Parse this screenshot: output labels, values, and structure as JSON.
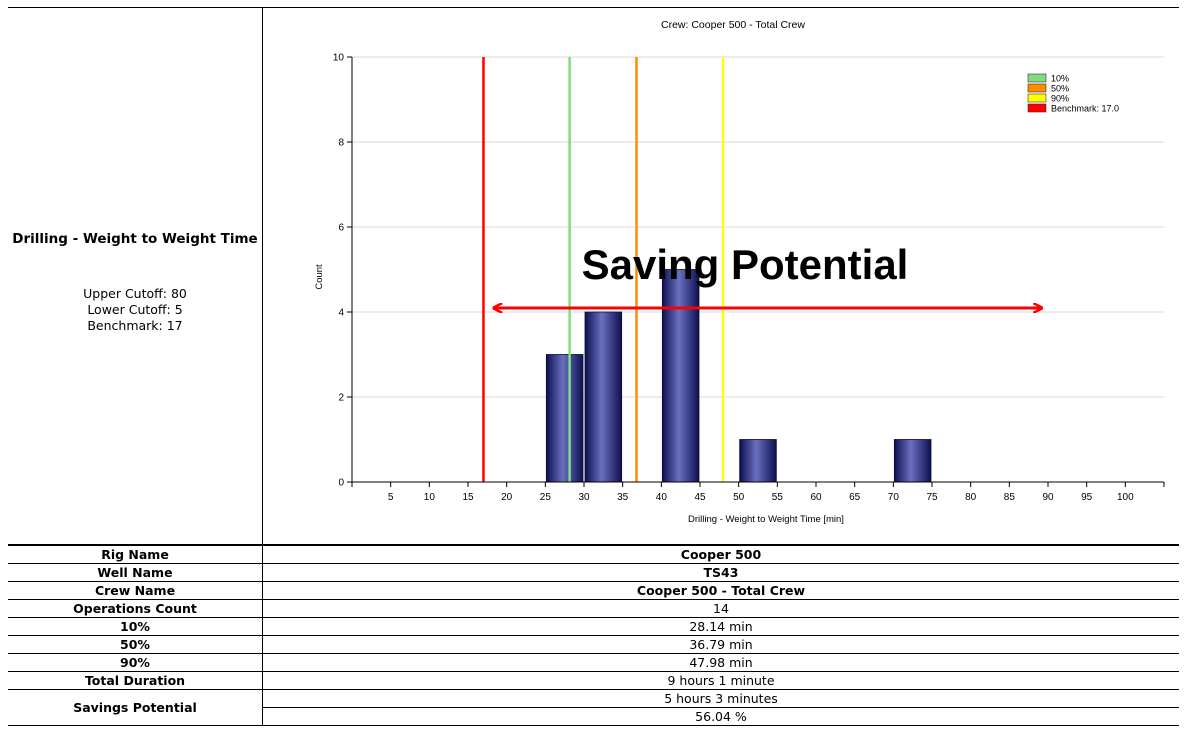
{
  "panel": {
    "metric_title": "Drilling - Weight to Weight Time",
    "upper_cutoff": "Upper Cutoff: 80",
    "lower_cutoff": "Lower Cutoff: 5",
    "benchmark": "Benchmark: 17"
  },
  "overlay": {
    "saving_potential_label": "Saving Potential",
    "arrow_from_x": 17,
    "arrow_to_x": 90,
    "arrow_color": "#ff0000"
  },
  "chart_data": {
    "type": "bar",
    "title": "Crew: Cooper 500 - Total Crew",
    "xlabel": "Drilling - Weight to Weight Time [min]",
    "ylabel": "Count",
    "xlim": [
      0,
      105
    ],
    "ylim": [
      0,
      10
    ],
    "x_ticks": [
      5,
      10,
      15,
      20,
      25,
      30,
      35,
      40,
      45,
      50,
      55,
      60,
      65,
      70,
      75,
      80,
      85,
      90,
      95,
      100
    ],
    "y_ticks": [
      0,
      2,
      4,
      6,
      8,
      10
    ],
    "grid": "horizontal",
    "bar_color": "#1e2270",
    "bars": [
      {
        "x_start": 25,
        "x_end": 30,
        "count": 3
      },
      {
        "x_start": 30,
        "x_end": 35,
        "count": 4
      },
      {
        "x_start": 40,
        "x_end": 45,
        "count": 5
      },
      {
        "x_start": 50,
        "x_end": 55,
        "count": 1
      },
      {
        "x_start": 70,
        "x_end": 75,
        "count": 1
      }
    ],
    "reference_lines": [
      {
        "name": "10%",
        "x": 28.14,
        "color": "#7fdd7f"
      },
      {
        "name": "50%",
        "x": 36.79,
        "color": "#ff8c00"
      },
      {
        "name": "90%",
        "x": 47.98,
        "color": "#ffff00"
      },
      {
        "name": "Benchmark: 17.0",
        "x": 17.0,
        "color": "#ff0000"
      }
    ],
    "legend_position": "top-right"
  },
  "stats": {
    "rows": [
      {
        "label": "Rig Name",
        "value": "Cooper 500",
        "bold": true
      },
      {
        "label": "Well Name",
        "value": "TS43",
        "bold": true
      },
      {
        "label": "Crew Name",
        "value": "Cooper 500 - Total Crew",
        "bold": true
      },
      {
        "label": "Operations Count",
        "value": "14",
        "bold": false
      },
      {
        "label": "10%",
        "value": "28.14 min",
        "bold": false
      },
      {
        "label": "50%",
        "value": "36.79 min",
        "bold": false
      },
      {
        "label": "90%",
        "value": "47.98 min",
        "bold": false
      },
      {
        "label": "Total Duration",
        "value": "9 hours 1 minute",
        "bold": false
      }
    ],
    "savings": {
      "label": "Savings Potential",
      "duration": "5 hours 3 minutes",
      "percent": "56.04 %"
    }
  }
}
